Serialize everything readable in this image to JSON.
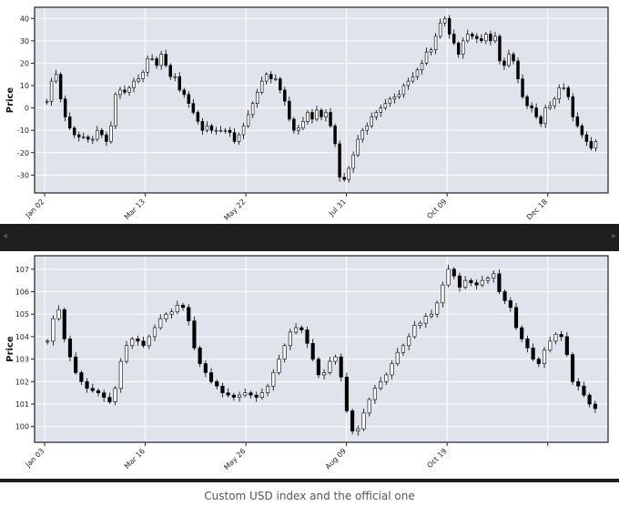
{
  "caption": "Custom USD index and the official one",
  "colors": {
    "plot_bg": "#dfe3ec",
    "grid": "#ffffff",
    "candle": "#000000",
    "strip": "#1e1e1e"
  },
  "chart_data": [
    {
      "type": "candlestick",
      "title": "",
      "ylabel": "Price",
      "ylim": [
        -38,
        45
      ],
      "yticks": [
        -30,
        -20,
        -10,
        0,
        10,
        20,
        30,
        40
      ],
      "xlim": [
        0,
        57
      ],
      "xtick_pos": [
        1,
        11,
        21,
        31,
        41,
        51
      ],
      "xtick_labels": [
        "Jan 02",
        "Mar 13",
        "May 22",
        "Jul 31",
        "Oct 09",
        "Dec 18"
      ],
      "close": [
        3,
        12,
        15,
        4,
        -4,
        -9,
        -12,
        -13,
        -13,
        -14,
        -14,
        -10,
        -12,
        -15,
        -8,
        6,
        8,
        7,
        9,
        12,
        13,
        16,
        22,
        22,
        19,
        24,
        19,
        14,
        14,
        8,
        6,
        2,
        -2,
        -6,
        -10,
        -8,
        -10,
        -10,
        -10,
        -10,
        -11,
        -15,
        -12,
        -8,
        -3,
        2,
        7,
        12,
        15,
        13,
        13,
        8,
        3,
        -5,
        -10,
        -9,
        -6,
        -2,
        -5,
        -1,
        -4,
        -2,
        -8,
        -16,
        -31,
        -32,
        -27,
        -21,
        -14,
        -10,
        -8,
        -4,
        -2,
        0,
        2,
        4,
        5,
        6,
        10,
        12,
        14,
        17,
        20,
        25,
        26,
        32,
        38,
        40,
        33,
        29,
        24,
        30,
        33,
        32,
        31,
        30,
        33,
        30,
        32,
        21,
        19,
        24,
        21,
        13,
        5,
        1,
        0,
        -4,
        -7,
        0,
        1,
        4,
        9,
        9,
        5,
        -4,
        -8,
        -12,
        -15,
        -18,
        -15
      ]
    },
    {
      "type": "candlestick",
      "title": "",
      "ylabel": "Price",
      "ylim": [
        99.3,
        107.6
      ],
      "yticks": [
        100,
        101,
        102,
        103,
        104,
        105,
        106,
        107
      ],
      "xlim": [
        0,
        57
      ],
      "xtick_pos": [
        1,
        11,
        21,
        31,
        41,
        51
      ],
      "xtick_labels": [
        "Jan 03",
        "Mar 16",
        "May 26",
        "Aug 09",
        "Oct 19",
        ""
      ],
      "close": [
        103.8,
        104.8,
        105.2,
        103.9,
        103.1,
        102.4,
        102.0,
        101.7,
        101.6,
        101.5,
        101.3,
        101.1,
        101.7,
        102.9,
        103.6,
        103.9,
        103.8,
        103.6,
        104.0,
        104.4,
        104.8,
        105.0,
        105.1,
        105.4,
        105.3,
        104.7,
        103.5,
        102.8,
        102.4,
        102.0,
        101.8,
        101.5,
        101.4,
        101.3,
        101.4,
        101.5,
        101.4,
        101.3,
        101.5,
        101.8,
        102.4,
        103.0,
        103.6,
        104.2,
        104.4,
        104.3,
        103.7,
        103.0,
        102.3,
        102.4,
        102.9,
        103.1,
        102.2,
        100.7,
        99.8,
        99.9,
        100.6,
        101.2,
        101.7,
        102.0,
        102.3,
        102.8,
        103.3,
        103.6,
        104.0,
        104.5,
        104.6,
        104.9,
        105.0,
        105.5,
        106.3,
        107.0,
        106.7,
        106.2,
        106.5,
        106.4,
        106.3,
        106.5,
        106.6,
        106.8,
        106.0,
        105.6,
        105.3,
        104.4,
        103.9,
        103.5,
        103.0,
        102.8,
        103.4,
        103.8,
        104.1,
        104.0,
        103.2,
        102.0,
        101.8,
        101.4,
        101.0,
        100.8
      ]
    }
  ]
}
